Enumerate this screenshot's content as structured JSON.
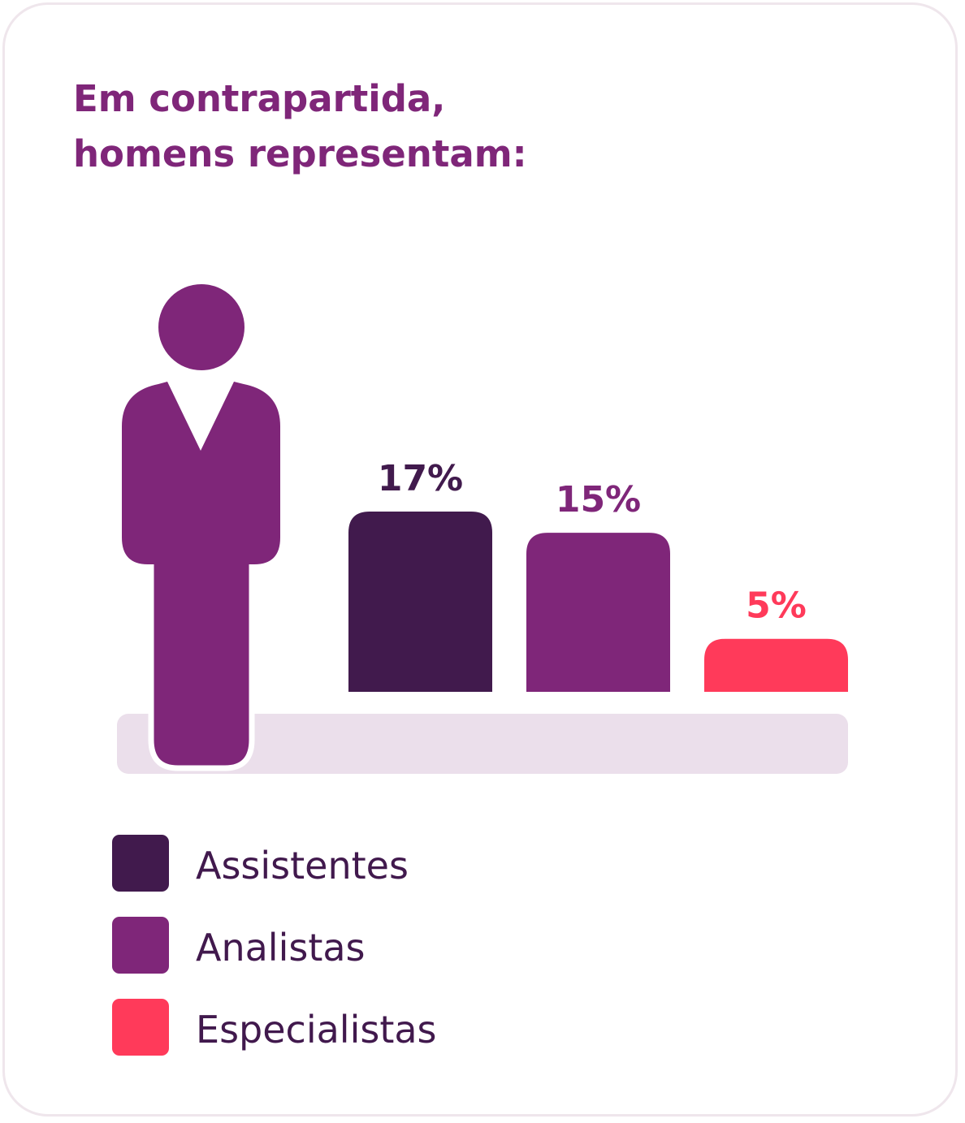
{
  "title": {
    "line1": "Em contrapartida,",
    "line2": "homens representam:"
  },
  "colors": {
    "figure": "#7f2679",
    "baseline": "#ebdfeb",
    "title": "#7f2679",
    "legend_text": "#41194d"
  },
  "icons": {
    "figure": "man-figure-icon"
  },
  "chart_data": {
    "type": "bar",
    "categories": [
      "Assistentes",
      "Analistas",
      "Especialistas"
    ],
    "series": [
      {
        "values": [
          17,
          15,
          5
        ]
      }
    ],
    "value_labels": [
      "17%",
      "15%",
      "5%"
    ],
    "bar_colors": [
      "#411a4d",
      "#7f2679",
      "#ff3a5a"
    ],
    "label_colors": [
      "#411a4d",
      "#7f2679",
      "#ff3a5a"
    ],
    "unit": "%",
    "grid": false,
    "legend_placement": "bottom-left"
  },
  "legend": [
    {
      "label": "Assistentes",
      "color": "#411a4d"
    },
    {
      "label": "Analistas",
      "color": "#7f2679"
    },
    {
      "label": "Especialistas",
      "color": "#ff3a5a"
    }
  ]
}
